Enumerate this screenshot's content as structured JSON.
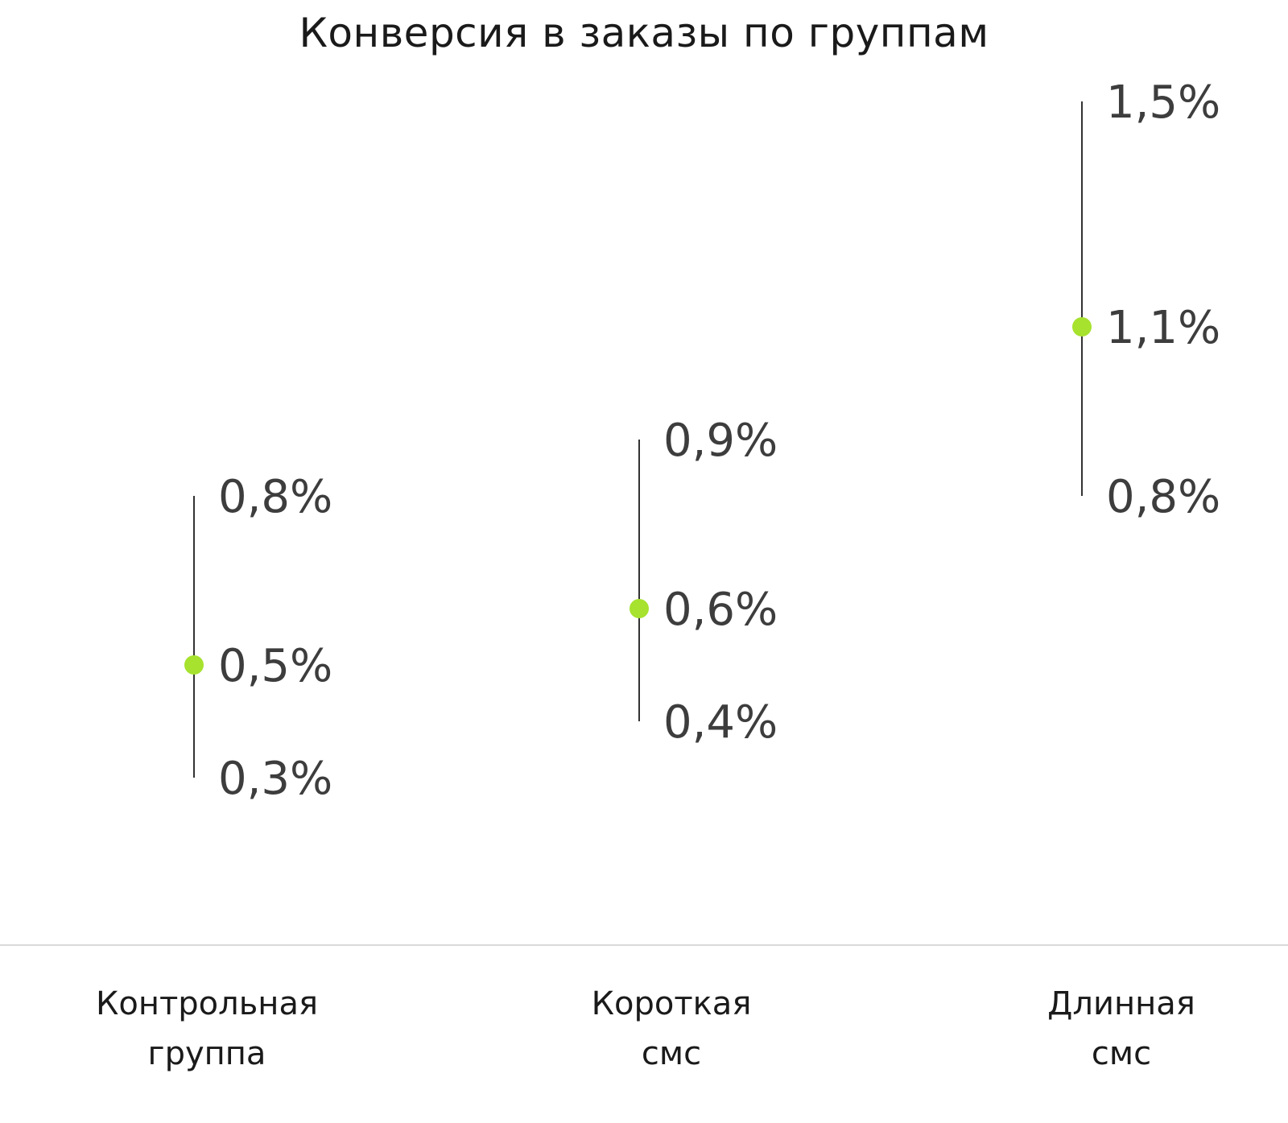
{
  "chart_data": {
    "type": "interval",
    "title": "Конверсия в заказы по группам",
    "categories": [
      {
        "label_lines": [
          "Контрольная",
          "группа"
        ],
        "point": 0.5,
        "low": 0.3,
        "high": 0.8,
        "labels": {
          "point": "0,5%",
          "low": "0,3%",
          "high": "0,8%"
        }
      },
      {
        "label_lines": [
          "Короткая",
          "смс"
        ],
        "point": 0.6,
        "low": 0.4,
        "high": 0.9,
        "labels": {
          "point": "0,6%",
          "low": "0,4%",
          "high": "0,9%"
        }
      },
      {
        "label_lines": [
          "Длинная",
          "смс"
        ],
        "point": 1.1,
        "low": 0.8,
        "high": 1.5,
        "labels": {
          "point": "1,1%",
          "low": "0,8%",
          "high": "1,5%"
        }
      }
    ],
    "xlabel": "",
    "ylabel": "",
    "grid": false,
    "legend": "none",
    "colors": {
      "point": "#a6e22e",
      "line": "#333333",
      "axis": "#d9d9d9",
      "label": "#3d3d3d",
      "text": "#1a1a1a"
    }
  }
}
